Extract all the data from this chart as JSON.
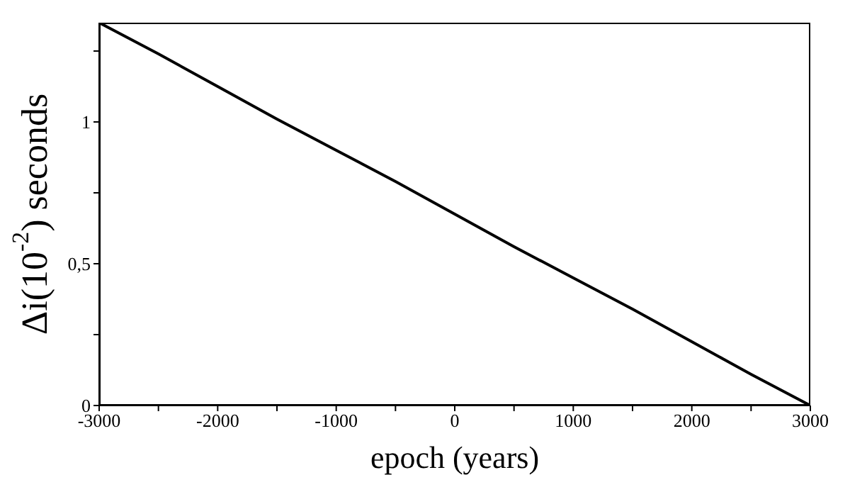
{
  "chart_data": {
    "type": "line",
    "xlabel": "epoch (years)",
    "ylabel": "Δi(10$^{-2}$) seconds",
    "x": [
      -3000,
      -2500,
      -2000,
      -1500,
      -1000,
      -500,
      0,
      500,
      1000,
      1500,
      2000,
      2500,
      3000
    ],
    "series": [
      {
        "color": "#000000",
        "values": [
          1.35,
          1.24,
          1.125,
          1.01,
          0.9,
          0.79,
          0.675,
          0.56,
          0.45,
          0.34,
          0.225,
          0.11,
          0
        ]
      }
    ],
    "xlim": [
      -3000,
      3000
    ],
    "xticks": [
      -3000,
      {
        "value": -2500,
        "label": null
      },
      -2000,
      {
        "value": -1500,
        "label": null
      },
      -1000,
      {
        "value": -500,
        "label": null
      },
      0,
      {
        "value": 500,
        "label": null
      },
      1000,
      {
        "value": 1500,
        "label": null
      },
      2000,
      {
        "value": 2500,
        "label": null
      },
      3000
    ],
    "ylim": [
      0,
      1.35
    ],
    "yticks": [
      0,
      {
        "value": 0.25,
        "label": null
      },
      {
        "value": 0.5,
        "label": "0,5"
      },
      {
        "value": 0.75,
        "label": null
      },
      1,
      {
        "value": 1.25,
        "label": null
      }
    ],
    "grid": false,
    "legend": false,
    "marker": "none",
    "line_style": "solid"
  }
}
